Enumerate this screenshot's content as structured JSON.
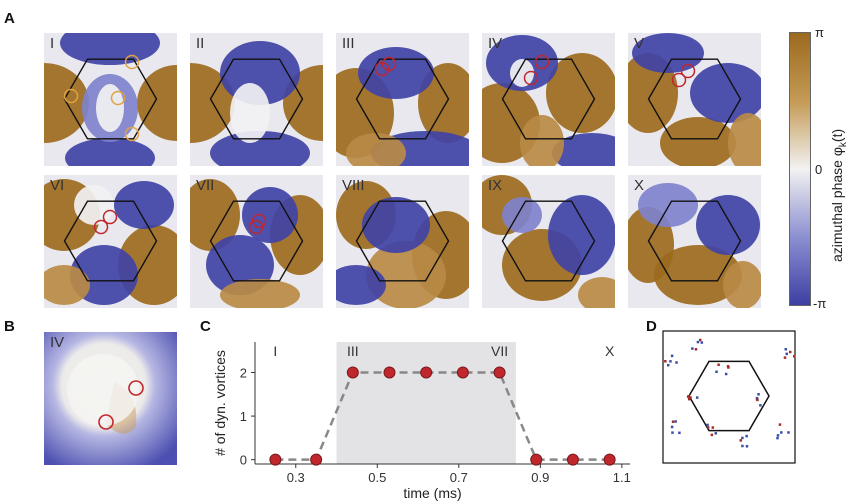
{
  "panel_letters": {
    "A": "A",
    "B": "B",
    "C": "C",
    "D": "D"
  },
  "tiles": [
    {
      "label": "I"
    },
    {
      "label": "II"
    },
    {
      "label": "III"
    },
    {
      "label": "IV"
    },
    {
      "label": "V"
    },
    {
      "label": "VI"
    },
    {
      "label": "VII"
    },
    {
      "label": "VIII"
    },
    {
      "label": "IX"
    },
    {
      "label": "X"
    }
  ],
  "inset_b": {
    "label": "IV"
  },
  "colorbar": {
    "top_label": "π",
    "mid_label": "0",
    "bottom_label": "-π",
    "axis_label": "azimuthal phase φ",
    "axis_label_sub": "k",
    "axis_label_suffix": "(t)",
    "colors": {
      "high": "#9c6a1e",
      "mid": "#f2f2f2",
      "low": "#3d3fa3"
    }
  },
  "chart_data": {
    "type": "line",
    "xlabel": "time (ms)",
    "ylabel": "# of dyn. vortices",
    "x": [
      0.25,
      0.35,
      0.44,
      0.53,
      0.62,
      0.71,
      0.8,
      0.89,
      0.98,
      1.07
    ],
    "values": [
      0,
      0,
      2,
      2,
      2,
      2,
      2,
      0,
      0,
      0
    ],
    "xlim": [
      0.2,
      1.12
    ],
    "ylim": [
      -0.1,
      2.7
    ],
    "xticks": [
      0.3,
      0.5,
      0.7,
      0.9,
      1.1
    ],
    "xtick_labels": [
      "0.3",
      "0.5",
      "0.7",
      "0.9",
      "1.1"
    ],
    "yticks": [
      0,
      1,
      2
    ],
    "ytick_labels": [
      "0",
      "1",
      "2"
    ],
    "shaded_region": [
      0.4,
      0.84
    ],
    "annotations": [
      {
        "text": "I",
        "x": 0.25
      },
      {
        "text": "III",
        "x": 0.44
      },
      {
        "text": "VII",
        "x": 0.8
      },
      {
        "text": "X",
        "x": 1.07
      }
    ],
    "colors": {
      "marker": "#c0272d",
      "line": "#888888",
      "shade": "#e3e3e6"
    }
  },
  "panel_d": {
    "colors": {
      "red": "#a52a2a",
      "blue": "#3b4fa8"
    }
  }
}
